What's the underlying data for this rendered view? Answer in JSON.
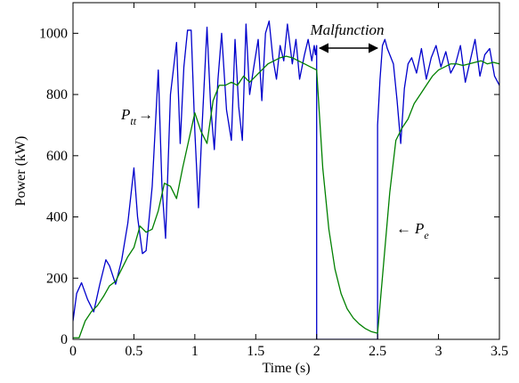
{
  "chart_data": {
    "type": "line",
    "title": "",
    "xlabel": "Time (s)",
    "ylabel": "Power (kW)",
    "xlim": [
      0,
      3.5
    ],
    "ylim": [
      0,
      1100
    ],
    "xticks": [
      0,
      0.5,
      1,
      1.5,
      2,
      2.5,
      3,
      3.5
    ],
    "xtick_labels": [
      "0",
      "0.5",
      "1",
      "1.5",
      "2",
      "2.5",
      "3",
      "3.5"
    ],
    "yticks": [
      0,
      200,
      400,
      600,
      800,
      1000
    ],
    "ytick_labels": [
      "0",
      "200",
      "400",
      "600",
      "800",
      "1000"
    ],
    "grid": false,
    "legend": "none",
    "series": [
      {
        "name": "P_tt",
        "color": "#0000cc",
        "x": [
          0.0,
          0.03,
          0.07,
          0.12,
          0.17,
          0.22,
          0.27,
          0.3,
          0.35,
          0.4,
          0.45,
          0.5,
          0.53,
          0.57,
          0.6,
          0.65,
          0.7,
          0.73,
          0.76,
          0.8,
          0.85,
          0.88,
          0.91,
          0.94,
          0.97,
          1.0,
          1.03,
          1.06,
          1.1,
          1.13,
          1.16,
          1.19,
          1.22,
          1.26,
          1.3,
          1.33,
          1.36,
          1.39,
          1.42,
          1.45,
          1.48,
          1.52,
          1.55,
          1.58,
          1.61,
          1.64,
          1.67,
          1.7,
          1.73,
          1.76,
          1.8,
          1.83,
          1.86,
          1.9,
          1.93,
          1.96,
          1.98,
          1.99,
          2.0,
          2.0,
          2.1,
          2.2,
          2.3,
          2.4,
          2.49,
          2.5,
          2.5,
          2.52,
          2.54,
          2.56,
          2.58,
          2.6,
          2.63,
          2.66,
          2.69,
          2.72,
          2.75,
          2.78,
          2.82,
          2.86,
          2.9,
          2.94,
          2.98,
          3.02,
          3.06,
          3.1,
          3.14,
          3.18,
          3.22,
          3.26,
          3.3,
          3.34,
          3.38,
          3.42,
          3.46,
          3.5
        ],
        "y": [
          60,
          150,
          185,
          130,
          90,
          180,
          260,
          240,
          180,
          260,
          380,
          560,
          400,
          280,
          290,
          500,
          880,
          500,
          330,
          800,
          970,
          640,
          890,
          1010,
          1010,
          680,
          430,
          700,
          1020,
          760,
          620,
          850,
          1000,
          750,
          650,
          980,
          760,
          650,
          1030,
          800,
          880,
          980,
          780,
          1000,
          1040,
          920,
          850,
          960,
          910,
          1030,
          900,
          980,
          850,
          930,
          980,
          910,
          960,
          930,
          960,
          0,
          0,
          0,
          0,
          0,
          0,
          0,
          700,
          850,
          960,
          980,
          950,
          930,
          900,
          780,
          640,
          820,
          900,
          920,
          870,
          950,
          850,
          920,
          960,
          890,
          940,
          870,
          900,
          960,
          840,
          910,
          980,
          860,
          930,
          950,
          860,
          830
        ]
      },
      {
        "name": "P_e",
        "color": "#008000",
        "x": [
          0.0,
          0.05,
          0.1,
          0.15,
          0.2,
          0.25,
          0.3,
          0.35,
          0.4,
          0.45,
          0.5,
          0.55,
          0.6,
          0.65,
          0.7,
          0.75,
          0.8,
          0.85,
          0.9,
          0.95,
          1.0,
          1.05,
          1.1,
          1.15,
          1.2,
          1.25,
          1.3,
          1.35,
          1.4,
          1.45,
          1.5,
          1.55,
          1.6,
          1.65,
          1.7,
          1.75,
          1.8,
          1.85,
          1.9,
          1.95,
          2.0,
          2.05,
          2.1,
          2.15,
          2.2,
          2.25,
          2.3,
          2.35,
          2.4,
          2.45,
          2.5,
          2.55,
          2.6,
          2.65,
          2.7,
          2.75,
          2.8,
          2.85,
          2.9,
          2.95,
          3.0,
          3.05,
          3.1,
          3.15,
          3.2,
          3.25,
          3.3,
          3.35,
          3.4,
          3.45,
          3.5
        ],
        "y": [
          5,
          5,
          60,
          90,
          110,
          140,
          175,
          190,
          230,
          270,
          300,
          370,
          350,
          360,
          420,
          510,
          500,
          460,
          560,
          650,
          740,
          680,
          640,
          780,
          830,
          830,
          840,
          830,
          860,
          840,
          860,
          880,
          900,
          910,
          920,
          925,
          920,
          910,
          900,
          890,
          880,
          560,
          360,
          230,
          150,
          100,
          70,
          50,
          35,
          25,
          20,
          250,
          480,
          650,
          690,
          720,
          770,
          800,
          830,
          860,
          880,
          890,
          900,
          900,
          895,
          900,
          905,
          910,
          900,
          905,
          900
        ]
      }
    ],
    "annotations": {
      "malfunction": {
        "text": "Malfunction",
        "x_from": 2.0,
        "x_to": 2.5,
        "y": 955
      },
      "ptt_label": {
        "base": "P",
        "sub": "tt",
        "arrow": "→"
      },
      "pe_label": {
        "arrow": "←",
        "base": "P",
        "sub": "e"
      }
    }
  }
}
